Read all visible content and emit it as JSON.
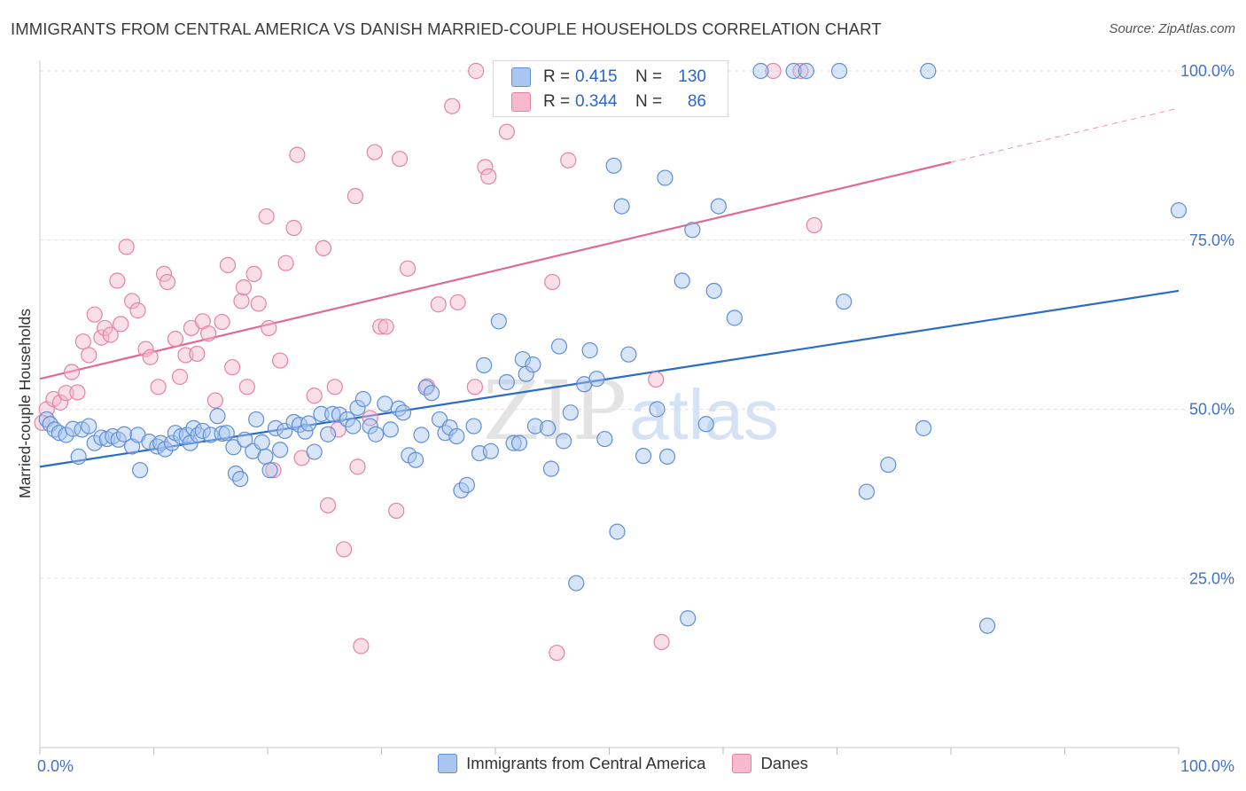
{
  "title": "IMMIGRANTS FROM CENTRAL AMERICA VS DANISH MARRIED-COUPLE HOUSEHOLDS CORRELATION CHART",
  "source": "Source: ZipAtlas.com",
  "watermark": {
    "zip": "ZIP",
    "atlas": "atlas"
  },
  "colors": {
    "blue_fill": "#a9c6f0",
    "blue_stroke": "#5f8fd6",
    "blue_line": "#2b6cc9",
    "pink_fill": "#f6b9cd",
    "pink_stroke": "#e383a5",
    "pink_line": "#e06a95",
    "tick_text": "#4472c4",
    "grid": "#e2e2e2"
  },
  "stats": {
    "blue": {
      "r_label": "R =",
      "r_value": "0.415",
      "n_label": "N =",
      "n_value": "130"
    },
    "pink": {
      "r_label": "R =",
      "r_value": "0.344",
      "n_label": "N =",
      "n_value": "86"
    }
  },
  "chart_data": {
    "type": "scatter",
    "title": "IMMIGRANTS FROM CENTRAL AMERICA VS DANISH MARRIED-COUPLE HOUSEHOLDS CORRELATION CHART",
    "xlabel": "",
    "ylabel": "Married-couple Households",
    "xlim": [
      0,
      100
    ],
    "ylim": [
      0,
      100
    ],
    "x_tick_labels": [
      {
        "value": 0,
        "label": "0.0%"
      },
      {
        "value": 100,
        "label": "100.0%"
      }
    ],
    "y_tick_labels": [
      {
        "value": 25,
        "label": "25.0%"
      },
      {
        "value": 50,
        "label": "50.0%"
      },
      {
        "value": 75,
        "label": "75.0%"
      },
      {
        "value": 100,
        "label": "100.0%"
      }
    ],
    "legend": [
      "Immigrants from Central America",
      "Danes"
    ],
    "series": [
      {
        "name": "Immigrants from Central America",
        "color": "blue",
        "trend": {
          "x0": 0,
          "y0": 41.5,
          "x1": 100,
          "y1": 67.5,
          "dashed_to": 100
        },
        "points": [
          [
            0.6,
            48.5
          ],
          [
            0.9,
            47.8
          ],
          [
            1.3,
            47
          ],
          [
            1.7,
            46.5
          ],
          [
            2.3,
            46.2
          ],
          [
            2.9,
            47.1
          ],
          [
            3.4,
            43
          ],
          [
            3.7,
            47
          ],
          [
            4.3,
            47.5
          ],
          [
            4.8,
            45
          ],
          [
            5.4,
            45.8
          ],
          [
            5.9,
            45.6
          ],
          [
            6.4,
            46
          ],
          [
            6.9,
            45.5
          ],
          [
            7.4,
            46.3
          ],
          [
            8.1,
            44.5
          ],
          [
            8.6,
            46.2
          ],
          [
            8.8,
            41
          ],
          [
            9.6,
            45.2
          ],
          [
            10.3,
            44.5
          ],
          [
            10.6,
            45
          ],
          [
            11,
            44.1
          ],
          [
            11.6,
            45
          ],
          [
            11.9,
            46.5
          ],
          [
            12.4,
            46
          ],
          [
            12.9,
            46.2
          ],
          [
            13.2,
            45
          ],
          [
            13.5,
            47.2
          ],
          [
            13.9,
            46.2
          ],
          [
            14.3,
            46.8
          ],
          [
            15,
            46.2
          ],
          [
            15.6,
            49
          ],
          [
            16,
            46.4
          ],
          [
            16.4,
            46.5
          ],
          [
            17,
            44.4
          ],
          [
            17.2,
            40.5
          ],
          [
            17.6,
            39.7
          ],
          [
            18,
            45.5
          ],
          [
            18.7,
            43.8
          ],
          [
            19,
            48.5
          ],
          [
            19.5,
            45.1
          ],
          [
            19.8,
            43
          ],
          [
            20.2,
            41
          ],
          [
            20.7,
            47.2
          ],
          [
            21.1,
            44
          ],
          [
            21.5,
            46.8
          ],
          [
            22.3,
            48.1
          ],
          [
            22.8,
            47.7
          ],
          [
            23.3,
            46.7
          ],
          [
            23.6,
            47.9
          ],
          [
            24.1,
            43.7
          ],
          [
            24.7,
            49.3
          ],
          [
            25.3,
            46.3
          ],
          [
            25.7,
            49.3
          ],
          [
            26.3,
            49.2
          ],
          [
            27,
            48.5
          ],
          [
            27.5,
            47.5
          ],
          [
            27.9,
            50.2
          ],
          [
            28.4,
            51.5
          ],
          [
            29,
            47.5
          ],
          [
            29.5,
            46.3
          ],
          [
            30.3,
            50.8
          ],
          [
            30.8,
            47
          ],
          [
            31.5,
            50.1
          ],
          [
            31.9,
            49.5
          ],
          [
            32.4,
            43.2
          ],
          [
            33,
            42.5
          ],
          [
            33.5,
            46.2
          ],
          [
            33.9,
            53.2
          ],
          [
            34.4,
            52.4
          ],
          [
            35.1,
            48.5
          ],
          [
            35.6,
            46.5
          ],
          [
            36,
            47.3
          ],
          [
            36.6,
            46
          ],
          [
            37,
            38
          ],
          [
            37.5,
            38.8
          ],
          [
            38.1,
            47.5
          ],
          [
            38.6,
            43.5
          ],
          [
            39,
            56.5
          ],
          [
            39.6,
            43.8
          ],
          [
            40.3,
            63
          ],
          [
            41,
            54
          ],
          [
            41.6,
            45
          ],
          [
            42.1,
            45
          ],
          [
            42.4,
            57.4
          ],
          [
            42.7,
            55.2
          ],
          [
            43.3,
            56.6
          ],
          [
            43.5,
            47.5
          ],
          [
            44.6,
            47.2
          ],
          [
            44.9,
            41.2
          ],
          [
            45.6,
            59.3
          ],
          [
            46,
            45.3
          ],
          [
            46.6,
            49.5
          ],
          [
            47.1,
            24.3
          ],
          [
            47.8,
            53.7
          ],
          [
            48.3,
            58.7
          ],
          [
            48.9,
            54.5
          ],
          [
            49.6,
            45.6
          ],
          [
            50.4,
            86
          ],
          [
            50.7,
            31.9
          ],
          [
            51.1,
            80
          ],
          [
            51.7,
            58.1
          ],
          [
            53,
            43.1
          ],
          [
            54.2,
            50
          ],
          [
            54.9,
            84.2
          ],
          [
            55.1,
            43
          ],
          [
            56.4,
            69
          ],
          [
            56.9,
            19.1
          ],
          [
            57.3,
            76.5
          ],
          [
            58.5,
            47.8
          ],
          [
            59.2,
            67.5
          ],
          [
            59.6,
            80
          ],
          [
            61,
            63.5
          ],
          [
            63.3,
            100
          ],
          [
            66.2,
            100
          ],
          [
            67.3,
            100
          ],
          [
            70.2,
            100
          ],
          [
            70.6,
            65.9
          ],
          [
            72.6,
            37.8
          ],
          [
            74.5,
            41.8
          ],
          [
            77.6,
            47.2
          ],
          [
            78,
            100
          ],
          [
            83.2,
            18
          ],
          [
            100,
            79.4
          ]
        ]
      },
      {
        "name": "Danes",
        "color": "pink",
        "trend": {
          "x0": 0,
          "y0": 54.5,
          "x1": 80,
          "y1": 86.5,
          "dashed_to": 100
        },
        "points": [
          [
            0.2,
            48
          ],
          [
            0.6,
            50
          ],
          [
            1.2,
            51.5
          ],
          [
            1.8,
            51
          ],
          [
            2.3,
            52.4
          ],
          [
            2.8,
            55.5
          ],
          [
            3.3,
            52.5
          ],
          [
            3.8,
            60
          ],
          [
            4.3,
            58
          ],
          [
            4.8,
            64
          ],
          [
            5.4,
            60.6
          ],
          [
            5.7,
            62
          ],
          [
            6.2,
            61
          ],
          [
            6.8,
            69
          ],
          [
            7.1,
            62.6
          ],
          [
            7.6,
            74
          ],
          [
            8.1,
            66
          ],
          [
            8.6,
            64.6
          ],
          [
            9.3,
            58.9
          ],
          [
            9.7,
            57.7
          ],
          [
            10.4,
            53.3
          ],
          [
            10.9,
            70
          ],
          [
            11.2,
            68.8
          ],
          [
            11.9,
            60.4
          ],
          [
            12.3,
            54.8
          ],
          [
            12.8,
            58
          ],
          [
            13.3,
            62
          ],
          [
            13.8,
            58.2
          ],
          [
            14.3,
            63
          ],
          [
            14.8,
            61.2
          ],
          [
            15.4,
            51.3
          ],
          [
            16,
            62.9
          ],
          [
            16.5,
            71.3
          ],
          [
            16.9,
            56.2
          ],
          [
            17.7,
            66
          ],
          [
            17.9,
            68
          ],
          [
            18.2,
            53.3
          ],
          [
            18.8,
            70
          ],
          [
            19.2,
            65.6
          ],
          [
            19.9,
            78.5
          ],
          [
            20.1,
            62
          ],
          [
            20.5,
            41
          ],
          [
            21.1,
            57.2
          ],
          [
            21.6,
            71.6
          ],
          [
            22.3,
            76.8
          ],
          [
            22.6,
            87.6
          ],
          [
            23,
            42.8
          ],
          [
            24.1,
            52
          ],
          [
            24.9,
            73.8
          ],
          [
            25.3,
            35.8
          ],
          [
            25.9,
            53.3
          ],
          [
            26.2,
            47
          ],
          [
            26.7,
            29.3
          ],
          [
            27.7,
            81.5
          ],
          [
            27.9,
            41.5
          ],
          [
            28.2,
            15
          ],
          [
            29,
            48.7
          ],
          [
            29.4,
            88
          ],
          [
            29.9,
            62.2
          ],
          [
            30.4,
            62.2
          ],
          [
            31.3,
            35
          ],
          [
            31.6,
            87
          ],
          [
            32.3,
            70.8
          ],
          [
            34,
            53.4
          ],
          [
            35,
            65.5
          ],
          [
            36.2,
            94.8
          ],
          [
            36.7,
            65.8
          ],
          [
            38.2,
            53.3
          ],
          [
            38.3,
            100
          ],
          [
            39.1,
            85.8
          ],
          [
            39.4,
            84.4
          ],
          [
            41,
            91
          ],
          [
            45,
            68.8
          ],
          [
            45.4,
            14
          ],
          [
            46.4,
            86.8
          ],
          [
            54.1,
            54.4
          ],
          [
            54.6,
            15.6
          ],
          [
            64.4,
            100
          ],
          [
            66.8,
            100
          ],
          [
            68,
            77.2
          ]
        ]
      }
    ]
  }
}
